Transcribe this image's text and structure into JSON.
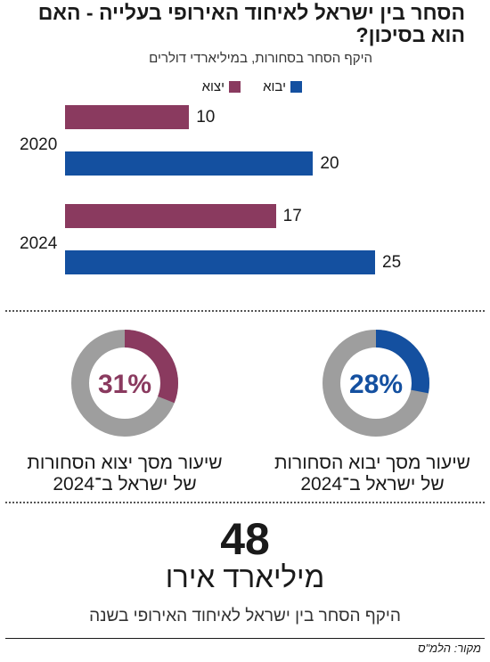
{
  "title": "הסחר בין ישראל לאיחוד האירופי בעלייה - האם הוא בסיכון?",
  "subtitle": "היקף הסחר בסחורות, במיליארדי דולרים",
  "source": "מקור: הלמ\"ס",
  "chart_data": [
    {
      "type": "bar",
      "orientation": "horizontal",
      "title": "הסחר בין ישראל לאיחוד האירופי בעלייה - האם הוא בסיכון?",
      "subtitle": "היקף הסחר בסחורות, במיליארדי דולרים",
      "categories": [
        "2020",
        "2024"
      ],
      "series": [
        {
          "name": "יצוא",
          "color": "#8a3a5f",
          "values": [
            10,
            17
          ]
        },
        {
          "name": "יבוא",
          "color": "#1450a0",
          "values": [
            20,
            25
          ]
        }
      ],
      "xlim": [
        0,
        25
      ],
      "grid": false,
      "legend": "top-right"
    },
    {
      "type": "pie",
      "variant": "donut",
      "label": "31%",
      "caption": [
        "שיעור מסך יצוא הסחורות",
        "של ישראל ב־2024"
      ],
      "values": [
        31,
        69
      ],
      "colors": [
        "#8a3a5f",
        "#9e9e9e"
      ],
      "text_color": "#8a3a5f"
    },
    {
      "type": "pie",
      "variant": "donut",
      "label": "28%",
      "caption": [
        "שיעור מסך יבוא הסחורות",
        "של ישראל ב־2024"
      ],
      "values": [
        28,
        72
      ],
      "colors": [
        "#1450a0",
        "#9e9e9e"
      ],
      "text_color": "#1450a0"
    }
  ],
  "highlight": {
    "number": "48",
    "unit": "מיליארד אירו",
    "description": "היקף הסחר בין ישראל לאיחוד האירופי בשנה"
  }
}
